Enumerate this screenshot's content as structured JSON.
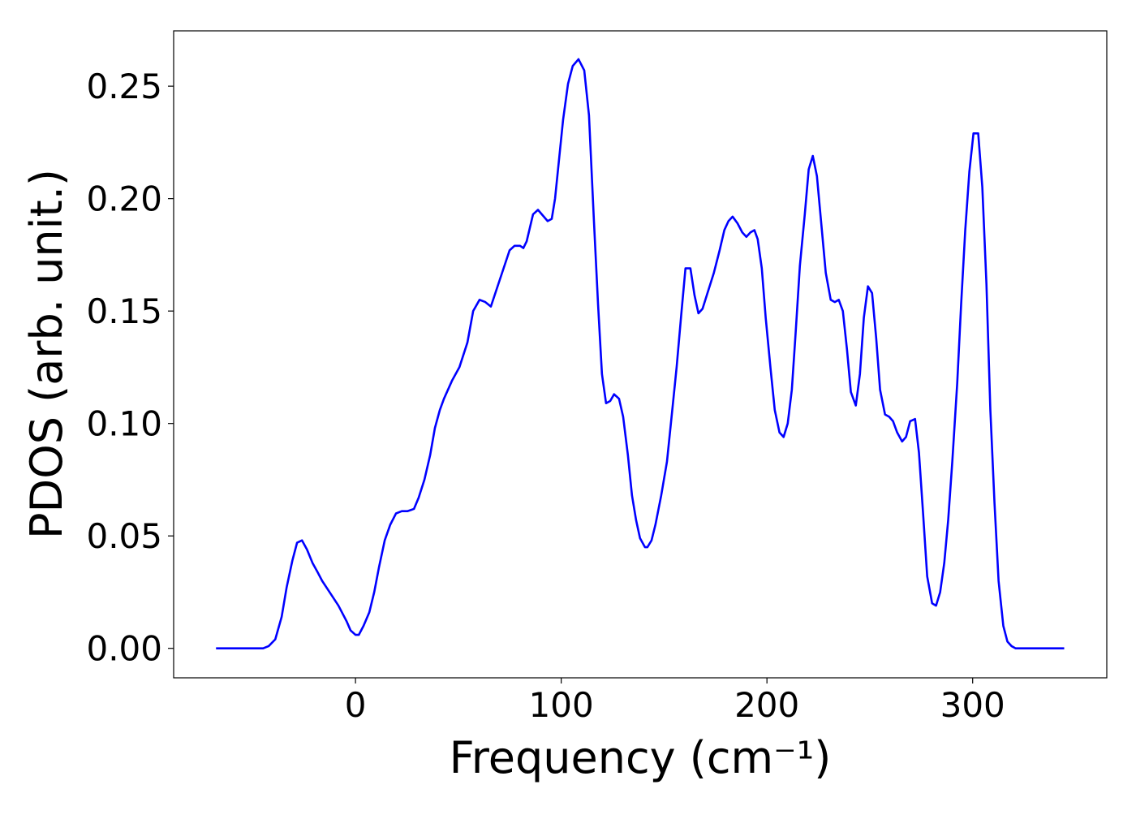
{
  "chart_data": {
    "type": "line",
    "xlabel": "Frequency (cm⁻¹)",
    "ylabel": "PDOS (arb. unit.)",
    "xlim": [
      -88.4,
      365.2
    ],
    "ylim": [
      -0.0131,
      0.2746
    ],
    "xticks": [
      0,
      100,
      200,
      300
    ],
    "yticks": [
      {
        "value": 0,
        "label": "0.00"
      },
      {
        "value": 0.05,
        "label": "0.05"
      },
      {
        "value": 0.1,
        "label": "0.10"
      },
      {
        "value": 0.15,
        "label": "0.15"
      },
      {
        "value": 0.2,
        "label": "0.20"
      },
      {
        "value": 0.25,
        "label": "0.25"
      }
    ],
    "grid": false,
    "series": [
      {
        "color": "#0000ff",
        "x": [
          -67.8,
          -44.9,
          -42.2,
          -39.0,
          -35.9,
          -33.5,
          -30.7,
          -28.4,
          -26.0,
          -23.6,
          -20.9,
          -18.5,
          -16.2,
          -12.6,
          -8.3,
          -4.3,
          -2.4,
          0,
          1.6,
          3.9,
          6.7,
          9.1,
          11.4,
          14.2,
          16.9,
          19.7,
          22.5,
          25.2,
          28.4,
          30.7,
          33.5,
          36.3,
          38.6,
          41.0,
          43.0,
          46.9,
          50.5,
          54.4,
          57.2,
          60.3,
          63.1,
          65.8,
          74.9,
          77.3,
          80.0,
          81.6,
          83.2,
          86.3,
          88.7,
          93.4,
          95.4,
          97.0,
          100.9,
          103.3,
          105.6,
          108.4,
          111.2,
          113.5,
          115.9,
          117.9,
          119.8,
          121.8,
          123.8,
          125.7,
          128.1,
          130.1,
          132.4,
          134.4,
          136.4,
          138.3,
          140.7,
          141.9,
          143.9,
          145.8,
          148.6,
          151.4,
          154.1,
          156.1,
          158.5,
          160.4,
          162.8,
          164.8,
          166.7,
          168.7,
          171.1,
          174.2,
          177.0,
          179.3,
          181.3,
          183.3,
          185.7,
          188.0,
          190.0,
          192.0,
          193.9,
          195.5,
          197.5,
          199.4,
          201.8,
          203.8,
          206.1,
          208.1,
          210.1,
          212.1,
          214.0,
          216.0,
          218.4,
          220.3,
          222.3,
          224.3,
          226.3,
          228.6,
          231.0,
          233.0,
          234.9,
          236.9,
          238.9,
          240.8,
          243.2,
          245.2,
          247.1,
          249.1,
          251.1,
          253.1,
          255.0,
          257.4,
          259.4,
          261.3,
          263.3,
          265.7,
          267.6,
          269.6,
          272.0,
          273.9,
          275.9,
          277.9,
          280.3,
          282.2,
          284.2,
          286.2,
          288.1,
          290.1,
          292.5,
          294.4,
          296.4,
          298.4,
          300.4,
          302.7,
          304.7,
          306.7,
          308.6,
          310.6,
          312.6,
          314.9,
          316.9,
          318.9,
          320.9,
          344.5
        ],
        "values": [
          0,
          0,
          0.001,
          0.004,
          0.014,
          0.027,
          0.039,
          0.047,
          0.048,
          0.044,
          0.038,
          0.034,
          0.03,
          0.025,
          0.019,
          0.012,
          0.008,
          0.006,
          0.006,
          0.01,
          0.016,
          0.025,
          0.036,
          0.048,
          0.055,
          0.06,
          0.061,
          0.061,
          0.062,
          0.067,
          0.075,
          0.086,
          0.098,
          0.106,
          0.111,
          0.119,
          0.125,
          0.136,
          0.15,
          0.155,
          0.154,
          0.152,
          0.177,
          0.179,
          0.179,
          0.178,
          0.181,
          0.193,
          0.195,
          0.19,
          0.191,
          0.2,
          0.235,
          0.251,
          0.259,
          0.262,
          0.257,
          0.237,
          0.19,
          0.153,
          0.122,
          0.109,
          0.11,
          0.113,
          0.111,
          0.103,
          0.086,
          0.068,
          0.057,
          0.049,
          0.045,
          0.045,
          0.048,
          0.055,
          0.068,
          0.083,
          0.107,
          0.125,
          0.15,
          0.169,
          0.169,
          0.157,
          0.149,
          0.151,
          0.158,
          0.167,
          0.177,
          0.186,
          0.19,
          0.192,
          0.189,
          0.185,
          0.183,
          0.185,
          0.186,
          0.182,
          0.169,
          0.147,
          0.124,
          0.106,
          0.096,
          0.094,
          0.1,
          0.115,
          0.141,
          0.17,
          0.193,
          0.213,
          0.219,
          0.21,
          0.19,
          0.167,
          0.155,
          0.154,
          0.155,
          0.15,
          0.133,
          0.114,
          0.108,
          0.122,
          0.147,
          0.161,
          0.158,
          0.138,
          0.115,
          0.104,
          0.103,
          0.101,
          0.096,
          0.092,
          0.094,
          0.101,
          0.102,
          0.087,
          0.06,
          0.032,
          0.02,
          0.019,
          0.025,
          0.038,
          0.057,
          0.083,
          0.118,
          0.153,
          0.186,
          0.212,
          0.229,
          0.229,
          0.205,
          0.162,
          0.106,
          0.065,
          0.03,
          0.01,
          0.003,
          0.001,
          0,
          0
        ]
      }
    ]
  }
}
